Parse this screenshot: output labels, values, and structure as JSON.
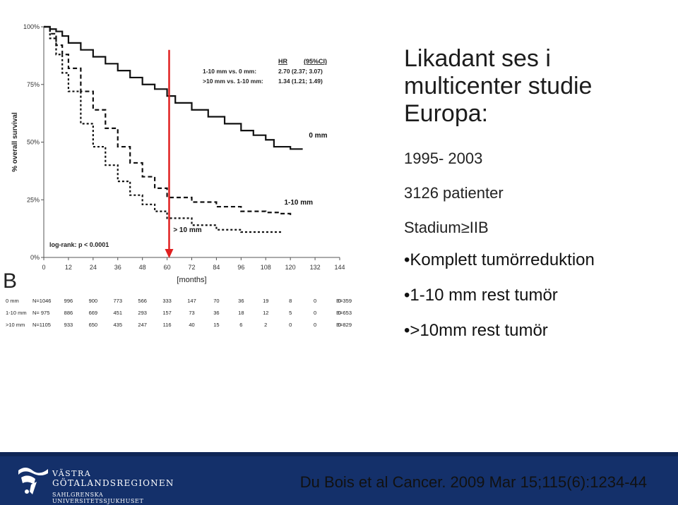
{
  "slide": {
    "title_lines": [
      "Likadant ses i",
      "multicenter studie",
      "Europa:"
    ],
    "facts": [
      "1995- 2003",
      "3126 patienter",
      "Stadium≥IIB"
    ],
    "bullets": [
      "Komplett tumörreduktion",
      "1-10 mm rest tumör",
      ">10mm rest tumör"
    ],
    "citation": "Du Bois et al  Cancer. 2009 Mar 15;115(6):1234-44",
    "panel_letter": "B"
  },
  "logo": {
    "line1": "VÄSTRA",
    "line2": "GÖTALANDSREGIONEN",
    "line3": "SAHLGRENSKA UNIVERSITETSSJUKHUSET"
  },
  "colors": {
    "footer_bg": "#14306a",
    "marker_red": "#e02020",
    "curve": "#111111"
  },
  "chart_data": {
    "type": "line",
    "title": "",
    "xlabel": "[months]",
    "ylabel": "% overall survival",
    "x_ticks": [
      0,
      12,
      24,
      36,
      48,
      60,
      72,
      84,
      96,
      108,
      120,
      132,
      144
    ],
    "y_ticks": [
      "0%",
      "25%",
      "50%",
      "75%",
      "100%"
    ],
    "y_tick_values": [
      0,
      25,
      50,
      75,
      100
    ],
    "xlim": [
      0,
      144
    ],
    "ylim": [
      0,
      100
    ],
    "grid": false,
    "series": [
      {
        "name": "0 mm",
        "style": "solid",
        "x": [
          0,
          3,
          6,
          9,
          12,
          18,
          24,
          30,
          36,
          42,
          48,
          54,
          60,
          64,
          72,
          80,
          88,
          96,
          102,
          108,
          112,
          120,
          126
        ],
        "y": [
          100,
          99,
          98,
          96,
          93,
          90,
          87,
          84,
          81,
          78,
          75,
          73,
          70,
          67,
          64,
          61,
          58,
          55,
          53,
          51,
          48,
          47,
          47
        ]
      },
      {
        "name": "1-10 mm",
        "style": "dashed",
        "x": [
          0,
          3,
          6,
          9,
          12,
          18,
          24,
          30,
          36,
          42,
          48,
          54,
          60,
          72,
          84,
          96,
          108,
          114,
          120
        ],
        "y": [
          100,
          97,
          92,
          88,
          82,
          72,
          64,
          56,
          48,
          41,
          35,
          30,
          26,
          24,
          22,
          20,
          19.5,
          19,
          18
        ]
      },
      {
        "name": "> 10 mm",
        "style": "dotted-dash",
        "x": [
          0,
          3,
          6,
          9,
          12,
          18,
          24,
          30,
          36,
          42,
          48,
          54,
          60,
          72,
          84,
          96,
          108,
          116
        ],
        "y": [
          100,
          95,
          88,
          80,
          72,
          58,
          48,
          40,
          33,
          27,
          23,
          20,
          17,
          14,
          12,
          11,
          11,
          11
        ]
      }
    ],
    "curve_labels": [
      {
        "text": "0 mm",
        "x": 129,
        "y": 52
      },
      {
        "text": "1-10 mm",
        "x": 117,
        "y": 23
      },
      {
        "text": "> 10 mm",
        "x": 63,
        "y": 11
      }
    ],
    "marker_line_x": 61,
    "annotations": {
      "hr_header": [
        "HR",
        "(95%CI)"
      ],
      "hr_rows": [
        {
          "label": "1-10 mm vs. 0 mm:",
          "value": "2.70 (2.37; 3.07)"
        },
        {
          "label": ">10 mm vs. 1-10 mm:",
          "value": "1.34 (1.21; 1.49)"
        }
      ],
      "logrank": "log-rank: p < 0.0001"
    },
    "risk_table": {
      "rows": [
        {
          "label": "0 mm",
          "n": "N=1046",
          "values": [
            "996",
            "900",
            "773",
            "566",
            "333",
            "147",
            "70",
            "36",
            "19",
            "8",
            "0",
            "0"
          ],
          "events": "E=359"
        },
        {
          "label": "1-10 mm",
          "n": "N= 975",
          "values": [
            "886",
            "669",
            "451",
            "293",
            "157",
            "73",
            "36",
            "18",
            "12",
            "5",
            "0",
            "0"
          ],
          "events": "E=653"
        },
        {
          "label": ">10 mm",
          "n": "N=1105",
          "values": [
            "933",
            "650",
            "435",
            "247",
            "116",
            "40",
            "15",
            "6",
            "2",
            "0",
            "0",
            "0"
          ],
          "events": "E=829"
        }
      ]
    }
  }
}
